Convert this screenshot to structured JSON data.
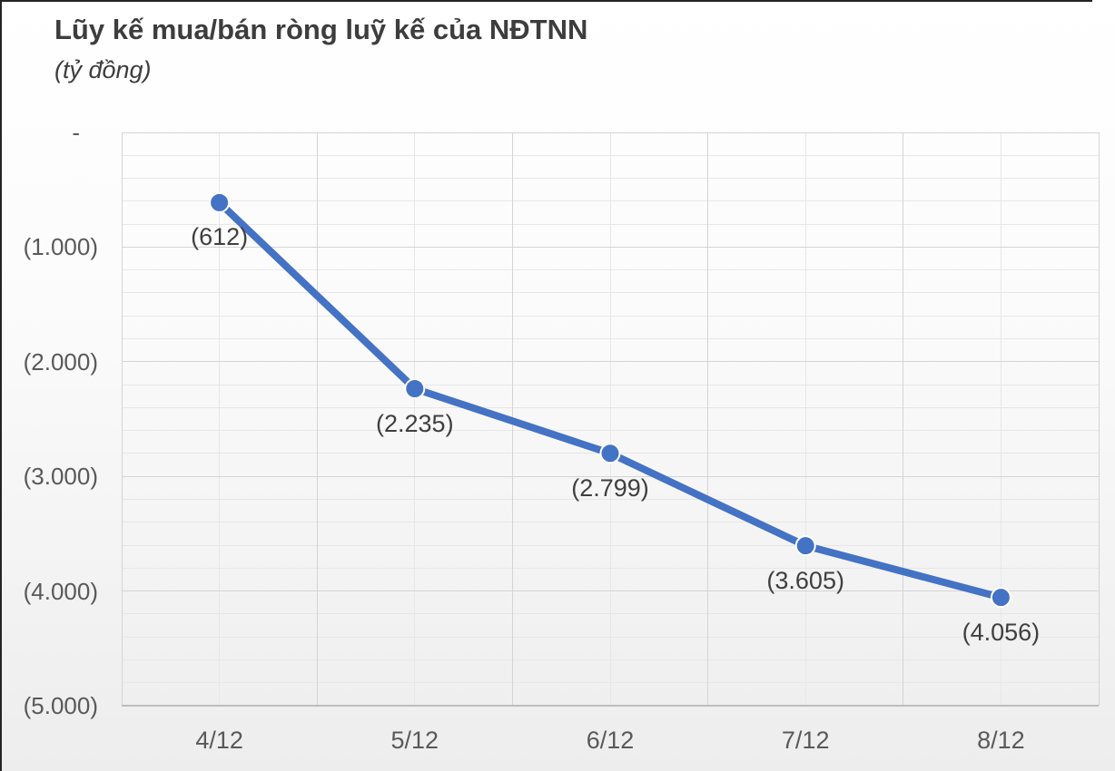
{
  "header": {
    "title": "Lũy kế mua/bán ròng luỹ kế của NĐTNN",
    "subtitle": "(tỷ đồng)"
  },
  "chart_data": {
    "type": "line",
    "title": "Lũy kế mua/bán ròng luỹ kế của NĐTNN",
    "unit_label": "(tỷ đồng)",
    "categories": [
      "4/12",
      "5/12",
      "6/12",
      "7/12",
      "8/12"
    ],
    "values": [
      -612,
      -2235,
      -2799,
      -3605,
      -4056
    ],
    "data_labels": [
      "(612)",
      "(2.235)",
      "(2.799)",
      "(3.605)",
      "(4.056)"
    ],
    "y_tick_labels": [
      "-",
      "(1.000)",
      "(2.000)",
      "(3.000)",
      "(4.000)",
      "(5.000)"
    ],
    "y_tick_values": [
      0,
      -1000,
      -2000,
      -3000,
      -4000,
      -5000
    ],
    "ylim": [
      -5000,
      0
    ],
    "y_minor_interval": 200,
    "grid": {
      "major": true,
      "minor": true,
      "x_major_at": "category-boundaries",
      "x_minor_at": "category-centers"
    },
    "legend": "none",
    "marker": "circle",
    "colors": {
      "series": "#4472C4",
      "marker_fill": "#4472C4",
      "marker_border": "#ffffff",
      "grid_major": "#d4d4d4",
      "grid_minor": "#e7e7e7",
      "axis_line": "#bcbcbc",
      "title_text": "#3d3d3d",
      "axis_text": "#595959",
      "data_label_text": "#3f3f3f",
      "frame_border": "#242424"
    }
  }
}
